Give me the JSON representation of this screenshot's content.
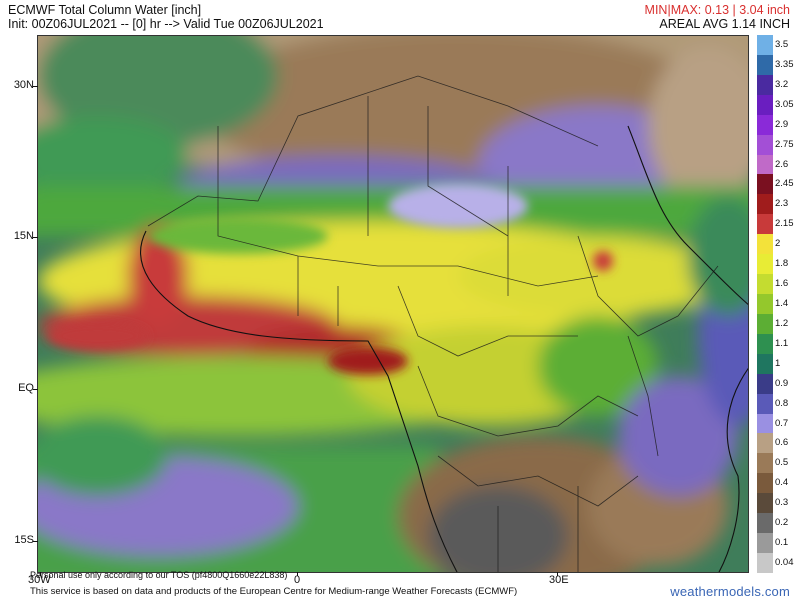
{
  "header": {
    "title": "ECMWF Total Column Water [inch]",
    "init": "Init: 00Z06JUL2021 -- [0] hr --> Valid Tue 00Z06JUL2021",
    "minmax": "MIN|MAX: 0.13 | 3.04 inch",
    "areal": "AREAL AVG 1.14 INCH"
  },
  "axes": {
    "lat_labels": [
      "30N",
      "15N",
      "EQ",
      "15S"
    ],
    "lon_labels": [
      "30W",
      "0",
      "30E"
    ]
  },
  "colorbar": {
    "labels": [
      "3.5",
      "3.35",
      "3.2",
      "3.05",
      "2.9",
      "2.75",
      "2.6",
      "2.45",
      "2.3",
      "2.15",
      "2",
      "1.8",
      "1.6",
      "1.4",
      "1.2",
      "1.1",
      "1",
      "0.9",
      "0.8",
      "0.7",
      "0.6",
      "0.5",
      "0.4",
      "0.3",
      "0.2",
      "0.1",
      "0.04"
    ],
    "colors": [
      "#6fb0e6",
      "#2f6aa8",
      "#4a2aa0",
      "#6a1ec0",
      "#8a2ad8",
      "#a34fd6",
      "#c06ac8",
      "#7a1020",
      "#a01c1c",
      "#c83a3a",
      "#f3e23a",
      "#e8ec35",
      "#c4dc30",
      "#94c82c",
      "#5cae34",
      "#2e9050",
      "#1f7660",
      "#3a3c88",
      "#5a5ab8",
      "#9a90e2",
      "#b8a084",
      "#9a7a58",
      "#7a5a3c",
      "#5a4a3a",
      "#6a6a6a",
      "#9a9a9a",
      "#c8c8c8"
    ]
  },
  "map": {
    "region": "Africa",
    "field": "Total Column Water"
  },
  "footer": {
    "tos": "Personal use only according to our TOS (pf4800Q1660e22L838)",
    "source": "This service is based on data and products of the European Centre for Medium-range Weather Forecasts (ECMWF)",
    "brand": "weathermodels.com"
  }
}
